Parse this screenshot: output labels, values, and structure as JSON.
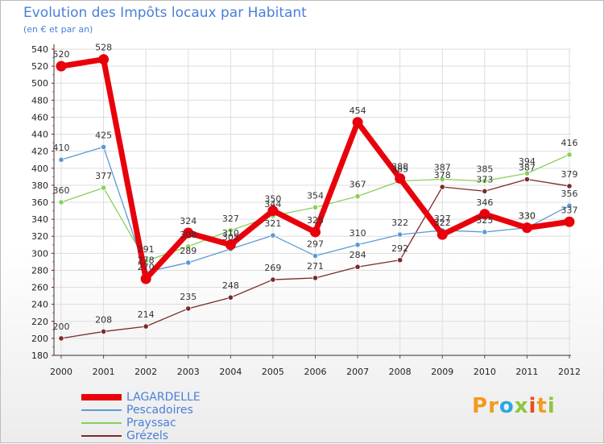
{
  "chart_data": {
    "type": "line",
    "title": "Evolution des Impôts locaux par Habitant",
    "subtitle": "(en € et par an)",
    "categories": [
      "2000",
      "2001",
      "2002",
      "2003",
      "2004",
      "2005",
      "2006",
      "2007",
      "2008",
      "2009",
      "2010",
      "2011",
      "2012"
    ],
    "ylim": [
      180,
      540
    ],
    "yticks": [
      180,
      200,
      220,
      240,
      260,
      280,
      300,
      320,
      340,
      360,
      380,
      400,
      420,
      440,
      460,
      480,
      500,
      520,
      540
    ],
    "grid": true,
    "legend_position": "bottom-left",
    "series": [
      {
        "name": "LAGARDELLE",
        "color": "#e8000b",
        "values": [
          520,
          528,
          270,
          324,
          310,
          350,
          325,
          454,
          388,
          322,
          346,
          330,
          337
        ]
      },
      {
        "name": "Pescadoires",
        "color": "#5b9bd5",
        "values": [
          410,
          425,
          278,
          289,
          305,
          321,
          297,
          310,
          322,
          327,
          325,
          330,
          356
        ]
      },
      {
        "name": "Prayssac",
        "color": "#88d05a",
        "values": [
          360,
          377,
          291,
          308,
          327,
          344,
          354,
          367,
          385,
          387,
          385,
          394,
          416
        ]
      },
      {
        "name": "Grézels",
        "color": "#7b2b2b",
        "values": [
          200,
          208,
          214,
          235,
          248,
          269,
          271,
          284,
          292,
          378,
          373,
          387,
          379
        ]
      }
    ]
  },
  "logo": {
    "letters": [
      {
        "ch": "P",
        "color": "#f29b1d"
      },
      {
        "ch": "r",
        "color": "#f29b1d"
      },
      {
        "ch": "o",
        "color": "#2aa7e0"
      },
      {
        "ch": "x",
        "color": "#8cc63f"
      },
      {
        "ch": "i",
        "color": "#e94e1b"
      },
      {
        "ch": "t",
        "color": "#f29b1d"
      },
      {
        "ch": "i",
        "color": "#8cc63f"
      }
    ]
  }
}
